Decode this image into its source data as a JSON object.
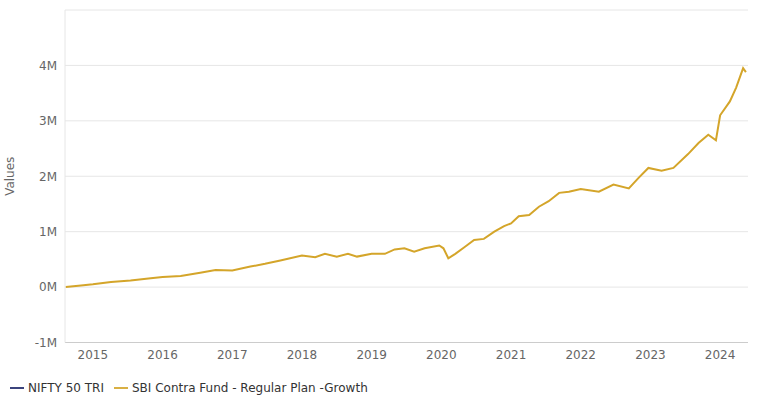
{
  "chart_data": {
    "type": "line",
    "y_label": "Values",
    "x": [
      2014.61,
      2014.83,
      2015.0,
      2015.26,
      2015.54,
      2015.83,
      2016.0,
      2016.26,
      2016.54,
      2016.76,
      2017.0,
      2017.26,
      2017.47,
      2017.69,
      2018.0,
      2018.19,
      2018.33,
      2018.5,
      2018.66,
      2018.79,
      2019.0,
      2019.19,
      2019.33,
      2019.47,
      2019.61,
      2019.76,
      2019.97,
      2020.03,
      2020.1,
      2020.2,
      2020.33,
      2020.47,
      2020.61,
      2020.76,
      2020.9,
      2021.0,
      2021.11,
      2021.26,
      2021.4,
      2021.54,
      2021.69,
      2021.83,
      2022.0,
      2022.26,
      2022.47,
      2022.69,
      2022.83,
      2022.97,
      2023.16,
      2023.33,
      2023.54,
      2023.69,
      2023.83,
      2023.94,
      2024.0,
      2024.14,
      2024.23,
      2024.33,
      2024.37
    ],
    "series": [
      {
        "name": "SBI Contra Fund - Regular Plan -Growth",
        "color": "#d4a52a",
        "values": [
          0,
          30000,
          50000,
          90000,
          120000,
          160000,
          180000,
          200000,
          260000,
          310000,
          300000,
          370000,
          420000,
          480000,
          570000,
          540000,
          600000,
          550000,
          600000,
          550000,
          600000,
          600000,
          680000,
          700000,
          640000,
          700000,
          750000,
          700000,
          520000,
          600000,
          720000,
          850000,
          870000,
          1000000,
          1100000,
          1150000,
          1280000,
          1300000,
          1450000,
          1550000,
          1700000,
          1720000,
          1770000,
          1720000,
          1850000,
          1780000,
          1970000,
          2150000,
          2100000,
          2150000,
          2400000,
          2600000,
          2750000,
          2650000,
          3100000,
          3350000,
          3600000,
          3950000,
          3880000
        ]
      },
      {
        "name": "NIFTY 50 TRI",
        "color": "#1f2a6b",
        "values": [
          null,
          null,
          null,
          null,
          null,
          null,
          null,
          null,
          null,
          null,
          null,
          null,
          null,
          null,
          null,
          null,
          null,
          null,
          null,
          null,
          null,
          null,
          null,
          null,
          null,
          null,
          null,
          null,
          null,
          null,
          null,
          null,
          null,
          null,
          null,
          null,
          null,
          null,
          null,
          null,
          null,
          null,
          null,
          null,
          null,
          null,
          null,
          null,
          null,
          null,
          null,
          null,
          null,
          null,
          null,
          null,
          null,
          null,
          null
        ]
      }
    ],
    "xlim": [
      2014.6,
      2024.4
    ],
    "xticks": [
      2015,
      2016,
      2017,
      2018,
      2019,
      2020,
      2021,
      2022,
      2023,
      2024
    ],
    "ylim": [
      -1000000,
      5000000
    ],
    "yticks": [
      {
        "value": -1000000,
        "label": "-1M"
      },
      {
        "value": 0,
        "label": "0M"
      },
      {
        "value": 1000000,
        "label": "1M"
      },
      {
        "value": 2000000,
        "label": "2M"
      },
      {
        "value": 3000000,
        "label": "3M"
      },
      {
        "value": 4000000,
        "label": "4M"
      }
    ],
    "grid": true,
    "legend": "bottom-left"
  }
}
